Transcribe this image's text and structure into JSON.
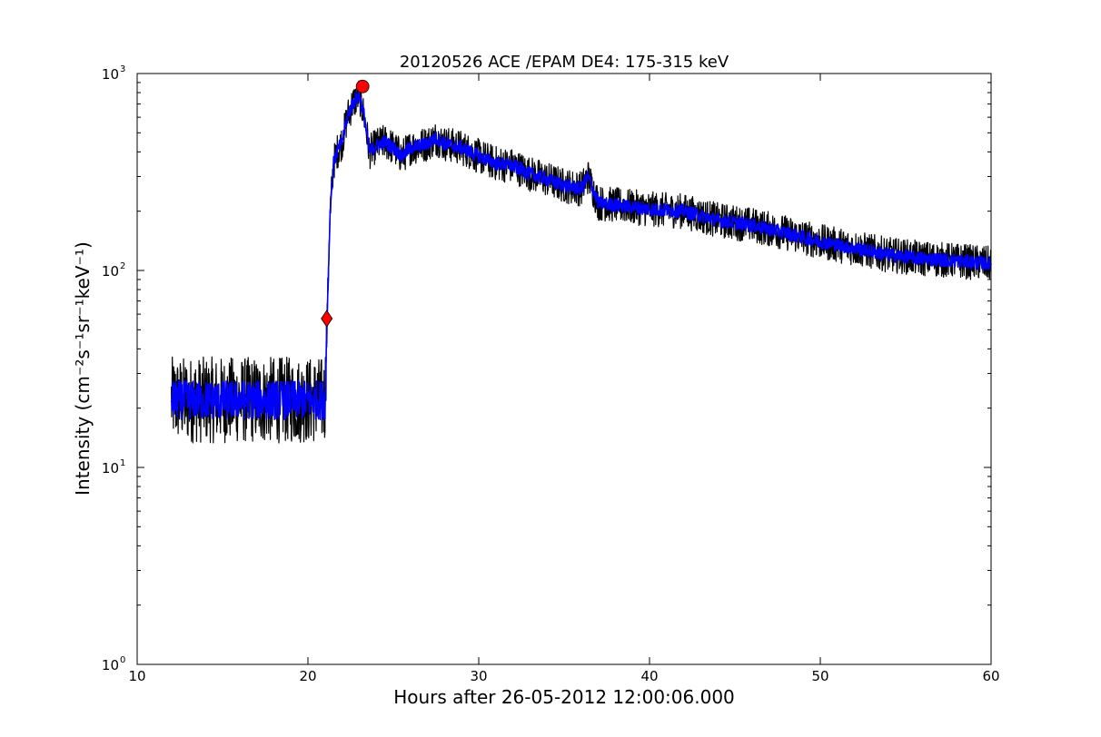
{
  "chart_data": {
    "type": "line",
    "title": "20120526 ACE /EPAM DE4: 175-315 keV",
    "xlabel": "Hours after 26-05-2012 12:00:06.000",
    "ylabel": "Intensity (cm⁻²s⁻¹sr⁻¹keV⁻¹)",
    "xlim": [
      10,
      60
    ],
    "ylim": [
      1,
      1000
    ],
    "yscale": "log",
    "x_ticks": [
      "10",
      "20",
      "30",
      "40",
      "50",
      "60"
    ],
    "y_ticks": [
      {
        "base": "10",
        "exp": "0"
      },
      {
        "base": "10",
        "exp": "1"
      },
      {
        "base": "10",
        "exp": "2"
      },
      {
        "base": "10",
        "exp": "3"
      }
    ],
    "grid": false,
    "legend": false,
    "series": [
      {
        "color": "#000000",
        "style": "raw",
        "x": [
          12.0,
          13.0,
          14.0,
          15.0,
          16.0,
          17.0,
          18.0,
          19.0,
          20.0,
          21.0,
          21.1,
          21.3,
          21.5,
          21.7,
          22.0,
          22.3,
          22.6,
          23.0,
          23.3,
          23.6,
          24.0,
          24.5,
          25.0,
          25.5,
          26.0,
          27.0,
          27.5,
          28.0,
          29.0,
          30.0,
          31.0,
          32.0,
          33.0,
          34.0,
          35.0,
          36.0,
          36.4,
          37.0,
          38.0,
          39.0,
          40.0,
          42.0,
          44.0,
          46.0,
          48.0,
          50.0,
          52.0,
          54.0,
          56.0,
          58.0,
          60.0
        ],
        "y": [
          22,
          22,
          22,
          22,
          22,
          22,
          22,
          22,
          22,
          22,
          50,
          200,
          350,
          400,
          450,
          600,
          700,
          780,
          600,
          400,
          430,
          450,
          420,
          380,
          420,
          440,
          470,
          440,
          420,
          380,
          350,
          340,
          310,
          290,
          270,
          260,
          300,
          220,
          215,
          210,
          205,
          200,
          180,
          170,
          155,
          140,
          130,
          120,
          115,
          112,
          108
        ]
      },
      {
        "color": "#0000ff",
        "style": "smoothed",
        "x": [
          12.0,
          13.0,
          14.0,
          15.0,
          16.0,
          17.0,
          18.0,
          19.0,
          20.0,
          21.0,
          21.1,
          21.3,
          21.5,
          21.7,
          22.0,
          22.3,
          22.6,
          23.0,
          23.3,
          23.6,
          24.0,
          24.5,
          25.0,
          25.5,
          26.0,
          27.0,
          27.5,
          28.0,
          29.0,
          30.0,
          31.0,
          32.0,
          33.0,
          34.0,
          35.0,
          36.0,
          36.4,
          37.0,
          38.0,
          39.0,
          40.0,
          42.0,
          44.0,
          46.0,
          48.0,
          50.0,
          52.0,
          54.0,
          56.0,
          58.0,
          60.0
        ],
        "y": [
          22,
          22,
          22,
          22,
          22,
          22,
          22,
          22,
          22,
          22,
          50,
          200,
          350,
          400,
          450,
          600,
          700,
          780,
          600,
          400,
          430,
          450,
          420,
          380,
          420,
          440,
          470,
          440,
          420,
          380,
          350,
          340,
          310,
          290,
          270,
          260,
          300,
          220,
          215,
          210,
          205,
          200,
          180,
          170,
          155,
          140,
          130,
          120,
          115,
          112,
          108
        ]
      }
    ],
    "markers": [
      {
        "shape": "diamond",
        "color": "#ff0000",
        "x": 21.1,
        "y": 57
      },
      {
        "shape": "circle",
        "color": "#ff0000",
        "x": 23.2,
        "y": 860
      }
    ]
  }
}
